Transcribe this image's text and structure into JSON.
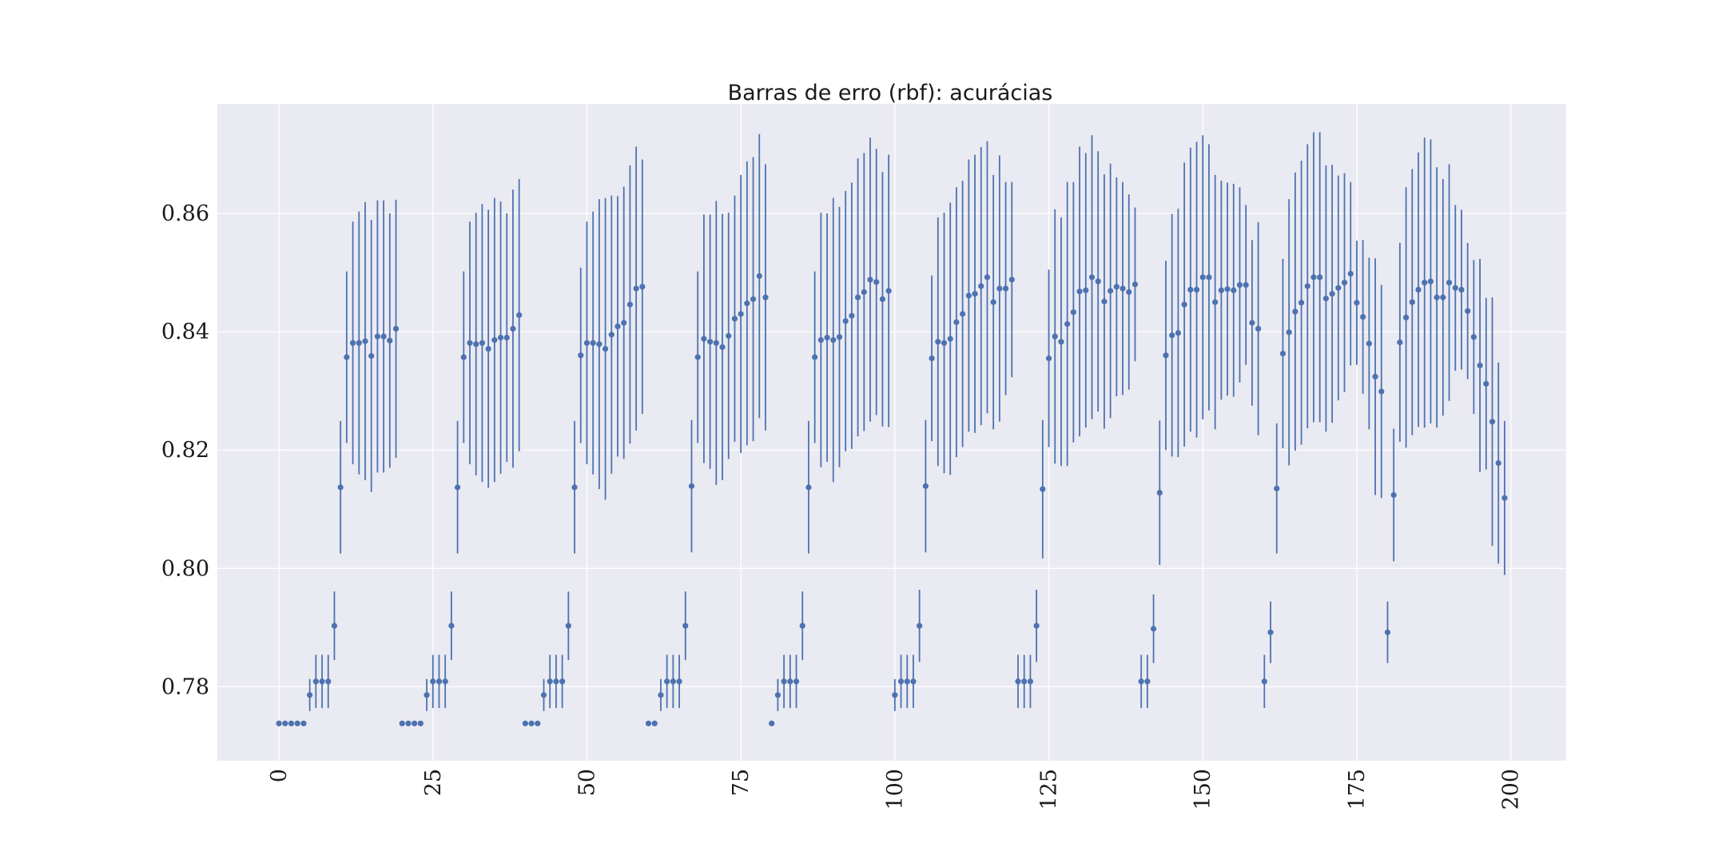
{
  "chart_data": {
    "type": "scatter",
    "title": "Barras de erro (rbf): acurácias",
    "xlabel": "",
    "ylabel": "",
    "xlim": [
      -10,
      209
    ],
    "ylim": [
      0.7675,
      0.8785
    ],
    "xticks": [
      0,
      25,
      50,
      75,
      100,
      125,
      150,
      175,
      200
    ],
    "xtick_labels": [
      "0",
      "25",
      "50",
      "75",
      "100",
      "125",
      "150",
      "175",
      "200"
    ],
    "yticks": [
      0.78,
      0.8,
      0.82,
      0.84,
      0.86
    ],
    "ytick_labels": [
      "0.78",
      "0.80",
      "0.82",
      "0.84",
      "0.86"
    ],
    "grid": true,
    "legend": "none",
    "background": "#eaeaf2",
    "grid_color": "#ffffff",
    "series_color": "#4c72b0",
    "x": [
      0,
      1,
      2,
      3,
      4,
      5,
      6,
      7,
      8,
      9,
      10,
      11,
      12,
      13,
      14,
      15,
      16,
      17,
      18,
      19,
      20,
      21,
      22,
      23,
      24,
      25,
      26,
      27,
      28,
      29,
      30,
      31,
      32,
      33,
      34,
      35,
      36,
      37,
      38,
      39,
      40,
      41,
      42,
      43,
      44,
      45,
      46,
      47,
      48,
      49,
      50,
      51,
      52,
      53,
      54,
      55,
      56,
      57,
      58,
      59,
      60,
      61,
      62,
      63,
      64,
      65,
      66,
      67,
      68,
      69,
      70,
      71,
      72,
      73,
      74,
      75,
      76,
      77,
      78,
      79,
      80,
      81,
      82,
      83,
      84,
      85,
      86,
      87,
      88,
      89,
      90,
      91,
      92,
      93,
      94,
      95,
      96,
      97,
      98,
      99,
      100,
      101,
      102,
      103,
      104,
      105,
      106,
      107,
      108,
      109,
      110,
      111,
      112,
      113,
      114,
      115,
      116,
      117,
      118,
      119,
      120,
      121,
      122,
      123,
      124,
      125,
      126,
      127,
      128,
      129,
      130,
      131,
      132,
      133,
      134,
      135,
      136,
      137,
      138,
      139,
      140,
      141,
      142,
      143,
      144,
      145,
      146,
      147,
      148,
      149,
      150,
      151,
      152,
      153,
      154,
      155,
      156,
      157,
      158,
      159,
      160,
      161,
      162,
      163,
      164,
      165,
      166,
      167,
      168,
      169,
      170,
      171,
      172,
      173,
      174,
      175,
      176,
      177,
      178,
      179,
      180,
      181,
      182,
      183,
      184,
      185,
      186,
      187,
      188,
      189,
      190,
      191,
      192,
      193,
      194,
      195,
      196,
      197,
      198,
      199
    ],
    "y": [
      0.7738,
      0.7738,
      0.7738,
      0.7738,
      0.7738,
      0.7786,
      0.7809,
      0.7809,
      0.7809,
      0.7903,
      0.8137,
      0.8357,
      0.8381,
      0.8381,
      0.8384,
      0.8359,
      0.8392,
      0.8392,
      0.8385,
      0.8405,
      0.7738,
      0.7738,
      0.7738,
      0.7738,
      0.7786,
      0.7809,
      0.7809,
      0.7809,
      0.7903,
      0.8137,
      0.8357,
      0.8381,
      0.8379,
      0.8381,
      0.8371,
      0.8386,
      0.839,
      0.839,
      0.8405,
      0.8428,
      0.7738,
      0.7738,
      0.7738,
      0.7786,
      0.7809,
      0.7809,
      0.7809,
      0.7903,
      0.8137,
      0.836,
      0.8381,
      0.8381,
      0.8379,
      0.8371,
      0.8395,
      0.8409,
      0.8415,
      0.8446,
      0.8473,
      0.8476,
      0.7738,
      0.7738,
      0.7786,
      0.7809,
      0.7809,
      0.7809,
      0.7903,
      0.8139,
      0.8357,
      0.8388,
      0.8383,
      0.8381,
      0.8374,
      0.8393,
      0.8422,
      0.843,
      0.8448,
      0.8455,
      0.8494,
      0.8458,
      0.7738,
      0.7786,
      0.7809,
      0.7809,
      0.7809,
      0.7903,
      0.8137,
      0.8357,
      0.8386,
      0.839,
      0.8386,
      0.8391,
      0.8418,
      0.8427,
      0.8458,
      0.8467,
      0.8488,
      0.8484,
      0.8455,
      0.8469,
      0.7786,
      0.7809,
      0.7809,
      0.7809,
      0.7903,
      0.8139,
      0.8355,
      0.8383,
      0.8381,
      0.8388,
      0.8416,
      0.843,
      0.8461,
      0.8464,
      0.8477,
      0.8492,
      0.845,
      0.8473,
      0.8473,
      0.8488,
      0.7809,
      0.7809,
      0.7809,
      0.7903,
      0.8134,
      0.8355,
      0.8392,
      0.8383,
      0.8413,
      0.8433,
      0.8468,
      0.847,
      0.8492,
      0.8485,
      0.8451,
      0.8469,
      0.8476,
      0.8473,
      0.8467,
      0.848,
      0.7809,
      0.7809,
      0.7898,
      0.8128,
      0.836,
      0.8394,
      0.8398,
      0.8446,
      0.8471,
      0.8471,
      0.8492,
      0.8492,
      0.845,
      0.847,
      0.8472,
      0.847,
      0.8479,
      0.8479,
      0.8415,
      0.8405,
      0.7809,
      0.7892,
      0.8135,
      0.8363,
      0.8399,
      0.8434,
      0.8449,
      0.8477,
      0.8492,
      0.8492,
      0.8456,
      0.8464,
      0.8474,
      0.8483,
      0.8498,
      0.8449,
      0.8425,
      0.838,
      0.8324,
      0.8299,
      0.7892,
      0.8124,
      0.8382,
      0.8424,
      0.845,
      0.8471,
      0.8483,
      0.8485,
      0.8458,
      0.8458,
      0.8483,
      0.8474,
      0.8471,
      0.8435,
      0.8391,
      0.8343,
      0.8312,
      0.8248,
      0.8178,
      0.8119
    ],
    "err": [
      0,
      0,
      0,
      0,
      0,
      0.0027,
      0.0045,
      0.0045,
      0.0045,
      0.0058,
      0.0112,
      0.0145,
      0.0205,
      0.0222,
      0.0235,
      0.023,
      0.023,
      0.023,
      0.0215,
      0.0218,
      0,
      0,
      0,
      0,
      0.0027,
      0.0045,
      0.0045,
      0.0045,
      0.0058,
      0.0112,
      0.0145,
      0.0205,
      0.0222,
      0.0235,
      0.0235,
      0.024,
      0.023,
      0.021,
      0.0235,
      0.023,
      0,
      0,
      0,
      0.0027,
      0.0045,
      0.0045,
      0.0045,
      0.0058,
      0.0112,
      0.0148,
      0.0205,
      0.0222,
      0.0245,
      0.0255,
      0.0235,
      0.022,
      0.023,
      0.0235,
      0.024,
      0.0215,
      0,
      0,
      0.0027,
      0.0045,
      0.0045,
      0.0045,
      0.0058,
      0.0112,
      0.0145,
      0.021,
      0.0215,
      0.024,
      0.0225,
      0.0208,
      0.0208,
      0.0235,
      0.024,
      0.024,
      0.024,
      0.0225,
      0,
      0.0027,
      0.0045,
      0.0045,
      0.0045,
      0.0058,
      0.0112,
      0.0145,
      0.0215,
      0.021,
      0.024,
      0.022,
      0.022,
      0.0225,
      0.0235,
      0.0235,
      0.024,
      0.0225,
      0.0215,
      0.023,
      0.0027,
      0.0045,
      0.0045,
      0.0045,
      0.0061,
      0.0112,
      0.014,
      0.021,
      0.022,
      0.023,
      0.0228,
      0.0225,
      0.023,
      0.0235,
      0.0235,
      0.023,
      0.0215,
      0.0225,
      0.018,
      0.0165,
      0.0045,
      0.0045,
      0.0045,
      0.0061,
      0.0117,
      0.015,
      0.0215,
      0.021,
      0.024,
      0.022,
      0.0245,
      0.0232,
      0.024,
      0.022,
      0.0215,
      0.0215,
      0.0185,
      0.018,
      0.0165,
      0.013,
      0.0045,
      0.0045,
      0.0058,
      0.0122,
      0.016,
      0.0205,
      0.021,
      0.024,
      0.024,
      0.025,
      0.024,
      0.0225,
      0.0215,
      0.0185,
      0.018,
      0.018,
      0.0165,
      0.0135,
      0.014,
      0.018,
      0.0045,
      0.0052,
      0.011,
      0.016,
      0.0225,
      0.0235,
      0.024,
      0.024,
      0.0245,
      0.0245,
      0.0225,
      0.0218,
      0.019,
      0.0185,
      0.0155,
      0.0105,
      0.013,
      0.0145,
      0.02,
      0.018,
      0.0052,
      0.0112,
      0.0168,
      0.022,
      0.0225,
      0.0232,
      0.0245,
      0.024,
      0.022,
      0.02,
      0.02,
      0.014,
      0.0135,
      0.0115,
      0.013,
      0.018,
      0.0145,
      0.021,
      0.017,
      0.013
    ]
  }
}
